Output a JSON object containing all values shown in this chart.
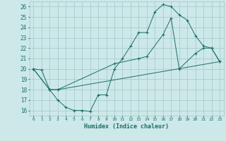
{
  "xlabel": "Humidex (Indice chaleur)",
  "bg_color": "#cde8e8",
  "grid_color": "#a0c8c8",
  "line_color": "#1a6e6a",
  "xlim": [
    -0.5,
    23.5
  ],
  "ylim": [
    15.5,
    26.5
  ],
  "xticks": [
    0,
    1,
    2,
    3,
    4,
    5,
    6,
    7,
    8,
    9,
    10,
    11,
    12,
    13,
    14,
    15,
    16,
    17,
    18,
    19,
    20,
    21,
    22,
    23
  ],
  "yticks": [
    16,
    17,
    18,
    19,
    20,
    21,
    22,
    23,
    24,
    25,
    26
  ],
  "line1_x": [
    0,
    1,
    2,
    3,
    4,
    5,
    6,
    7,
    8,
    9,
    10,
    11,
    12,
    13,
    14,
    15,
    16,
    17,
    18,
    19,
    20,
    21,
    22,
    23
  ],
  "line1_y": [
    20.0,
    19.9,
    18.0,
    17.0,
    16.3,
    16.0,
    16.0,
    15.9,
    17.5,
    17.5,
    20.0,
    21.0,
    22.2,
    23.5,
    23.5,
    25.5,
    26.2,
    26.0,
    25.2,
    24.7,
    23.2,
    22.2,
    22.0,
    20.7
  ],
  "line2_x": [
    0,
    2,
    3,
    10,
    13,
    14,
    16,
    17,
    18,
    20,
    21,
    22,
    23
  ],
  "line2_y": [
    20.0,
    18.0,
    18.0,
    20.5,
    21.0,
    21.2,
    23.3,
    24.9,
    20.0,
    21.5,
    22.0,
    22.0,
    20.7
  ],
  "line3_x": [
    0,
    2,
    3,
    23
  ],
  "line3_y": [
    20.0,
    18.0,
    18.0,
    20.7
  ]
}
